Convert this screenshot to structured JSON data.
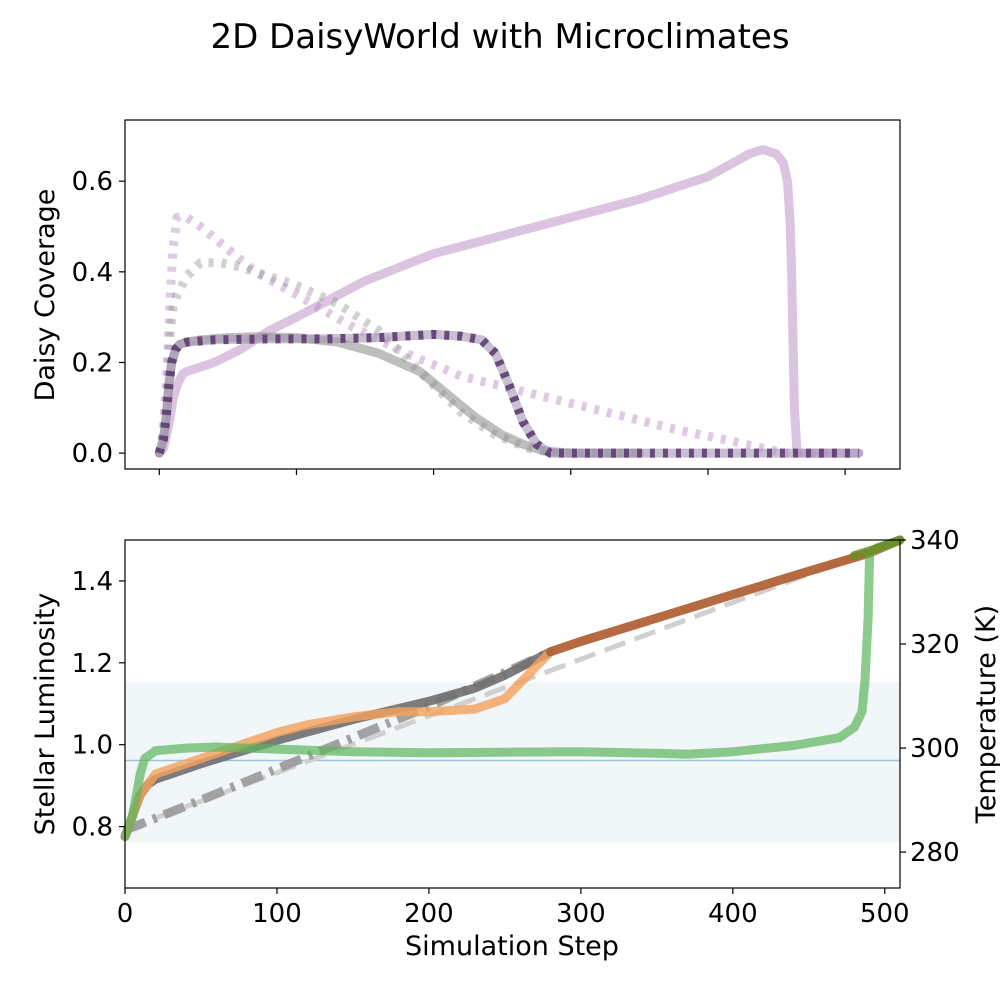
{
  "chart_data": [
    {
      "title": "2D DaisyWorld with Microclimates",
      "type": "line",
      "ylabel": "Daisy Coverage",
      "xlim": [
        -25,
        540
      ],
      "ylim": [
        -0.035,
        0.735
      ],
      "yticks": [
        0.0,
        0.2,
        0.4,
        0.6
      ],
      "ytick_labels": [
        "0.0",
        "0.2",
        "0.4",
        "0.6"
      ],
      "xticks": [
        0,
        100,
        200,
        300,
        400,
        500
      ],
      "series": [
        {
          "color": "#b58ac0",
          "style": "solid",
          "opacity": 0.5,
          "x": [
            0,
            3,
            6,
            8,
            10,
            13,
            17,
            20,
            30,
            40,
            60,
            80,
            100,
            150,
            200,
            250,
            300,
            350,
            400,
            430,
            440,
            450,
            455,
            458,
            460,
            461,
            462,
            463,
            465,
            470,
            490,
            510
          ],
          "y": [
            0.0,
            0.01,
            0.05,
            0.08,
            0.12,
            0.15,
            0.175,
            0.18,
            0.19,
            0.2,
            0.23,
            0.27,
            0.3,
            0.38,
            0.44,
            0.48,
            0.52,
            0.56,
            0.61,
            0.66,
            0.67,
            0.66,
            0.64,
            0.6,
            0.5,
            0.4,
            0.25,
            0.1,
            0.0,
            0.0,
            0.0,
            0.0
          ]
        },
        {
          "color": "#b58ac0",
          "style": "dotted",
          "opacity": 0.45,
          "x": [
            0,
            3,
            6,
            8,
            10,
            13,
            20,
            30,
            50,
            70,
            100,
            140,
            180,
            220,
            260,
            300,
            340,
            380,
            420,
            455,
            470,
            490
          ],
          "y": [
            0.0,
            0.05,
            0.2,
            0.35,
            0.45,
            0.52,
            0.52,
            0.5,
            0.45,
            0.4,
            0.35,
            0.28,
            0.22,
            0.17,
            0.14,
            0.11,
            0.08,
            0.05,
            0.025,
            0.0,
            0.0,
            0.0
          ]
        },
        {
          "color": "#9a9a9a",
          "style": "dotted",
          "opacity": 0.45,
          "x": [
            0,
            3,
            6,
            8,
            10,
            13,
            20,
            30,
            45,
            60,
            80,
            100,
            130,
            160,
            190,
            220,
            245,
            270,
            290,
            300,
            320,
            350
          ],
          "y": [
            0.0,
            0.04,
            0.15,
            0.27,
            0.32,
            0.35,
            0.39,
            0.42,
            0.42,
            0.41,
            0.39,
            0.37,
            0.33,
            0.27,
            0.18,
            0.09,
            0.04,
            0.01,
            0.0,
            0.0,
            0.0,
            0.0
          ]
        },
        {
          "color": "#888888",
          "style": "solid",
          "opacity": 0.55,
          "x": [
            0,
            3,
            5,
            7,
            9,
            12,
            15,
            20,
            30,
            50,
            70,
            100,
            130,
            160,
            190,
            210,
            230,
            250,
            265,
            280,
            300,
            320,
            350
          ],
          "y": [
            0.0,
            0.03,
            0.08,
            0.15,
            0.2,
            0.23,
            0.24,
            0.245,
            0.25,
            0.255,
            0.257,
            0.255,
            0.245,
            0.22,
            0.18,
            0.13,
            0.08,
            0.04,
            0.02,
            0.005,
            0.0,
            0.0,
            0.0
          ]
        },
        {
          "color": "#a495b5",
          "style": "solid",
          "opacity": 0.6,
          "x": [
            0,
            3,
            5,
            7,
            9,
            12,
            15,
            20,
            40,
            80,
            120,
            160,
            200,
            220,
            235,
            245,
            255,
            265,
            275,
            285,
            300,
            350,
            400,
            450,
            490,
            510
          ],
          "y": [
            0.0,
            0.03,
            0.08,
            0.15,
            0.2,
            0.23,
            0.24,
            0.245,
            0.25,
            0.252,
            0.252,
            0.255,
            0.262,
            0.258,
            0.25,
            0.22,
            0.15,
            0.07,
            0.02,
            0.0,
            0.0,
            0.0,
            0.0,
            0.0,
            0.0,
            0.0
          ]
        },
        {
          "color": "#5e3d70",
          "style": "dotted",
          "opacity": 0.9,
          "x": [
            0,
            3,
            5,
            7,
            9,
            12,
            15,
            20,
            40,
            80,
            120,
            160,
            200,
            220,
            235,
            245,
            255,
            265,
            275,
            285,
            300,
            350,
            400,
            450,
            490,
            510
          ],
          "y": [
            0.0,
            0.03,
            0.08,
            0.15,
            0.2,
            0.23,
            0.24,
            0.245,
            0.25,
            0.252,
            0.252,
            0.255,
            0.262,
            0.258,
            0.25,
            0.22,
            0.15,
            0.07,
            0.02,
            0.0,
            0.0,
            0.0,
            0.0,
            0.0,
            0.0,
            0.0
          ]
        }
      ]
    },
    {
      "type": "line",
      "xlabel": "Simulation Step",
      "ylabel": "Stellar Luminosity",
      "ylabel_right": "Temperature (K)",
      "xlim": [
        0,
        510
      ],
      "ylim": [
        0.65,
        1.5
      ],
      "ylim_right": [
        273.1,
        340
      ],
      "xticks": [
        0,
        100,
        200,
        300,
        400,
        500
      ],
      "xtick_labels": [
        "0",
        "100",
        "200",
        "300",
        "400",
        "500"
      ],
      "yticks": [
        0.8,
        1.0,
        1.2,
        1.4
      ],
      "ytick_labels": [
        "0.8",
        "1.0",
        "1.2",
        "1.4"
      ],
      "yticks_right": [
        280,
        300,
        320,
        340
      ],
      "ytick_labels_right": [
        "280",
        "300",
        "320",
        "340"
      ],
      "band_right": [
        281.9,
        312.6
      ],
      "hline_right": 297.6,
      "series": [
        {
          "axis": "left",
          "color": "#d0d0d0",
          "style": "dashed",
          "opacity": 1.0,
          "x": [
            0,
            510
          ],
          "y": [
            0.793,
            1.5
          ]
        },
        {
          "axis": "right",
          "color": "#999999",
          "style": "dashdot",
          "opacity": 0.9,
          "x": [
            0,
            50,
            100,
            150,
            200,
            250,
            280
          ],
          "y": [
            284.2,
            290.0,
            296.0,
            302.0,
            308.0,
            314.5,
            318.5
          ]
        },
        {
          "axis": "right",
          "color": "#6f6f6f",
          "style": "solid",
          "opacity": 0.9,
          "x": [
            0,
            5,
            10,
            15,
            20,
            50,
            100,
            150,
            200,
            230,
            250,
            270,
            280
          ],
          "y": [
            283.0,
            287.0,
            291.0,
            293.0,
            294.0,
            297.0,
            301.5,
            305.5,
            309.0,
            311.5,
            314.0,
            317.0,
            318.5
          ]
        },
        {
          "axis": "right",
          "color": "#f5a15b",
          "style": "solid",
          "opacity": 0.8,
          "x": [
            0,
            5,
            10,
            15,
            20,
            40,
            60,
            80,
            100,
            120,
            150,
            180,
            200,
            230,
            250,
            260,
            270,
            280,
            300,
            350,
            400,
            450,
            490
          ],
          "y": [
            283.0,
            287.0,
            291.0,
            293.0,
            295.0,
            297.0,
            299.0,
            301.0,
            303.0,
            304.5,
            306.0,
            307.0,
            307.0,
            307.5,
            309.5,
            312.5,
            315.5,
            318.5,
            320.5,
            325.0,
            329.5,
            334.0,
            337.5
          ]
        },
        {
          "axis": "right",
          "color": "#a0522d",
          "style": "solid",
          "opacity": 0.75,
          "x": [
            280,
            300,
            350,
            400,
            450,
            490,
            510
          ],
          "y": [
            318.5,
            320.5,
            325.0,
            329.5,
            334.0,
            337.5,
            340.0
          ]
        },
        {
          "axis": "right",
          "color": "#5bb55b",
          "style": "solid",
          "opacity": 0.7,
          "x": [
            0,
            5,
            10,
            13,
            20,
            40,
            60,
            80,
            100,
            150,
            200,
            250,
            300,
            350,
            370,
            400,
            440,
            470,
            480,
            485,
            487,
            489,
            490,
            495,
            510
          ],
          "y": [
            283.0,
            287.0,
            295.0,
            298.0,
            299.5,
            300.0,
            300.2,
            300.0,
            299.8,
            299.3,
            299.1,
            299.2,
            299.3,
            299.0,
            298.8,
            299.3,
            300.5,
            302.0,
            304.0,
            307.0,
            313.0,
            325.0,
            337.5,
            338.5,
            340.0
          ]
        },
        {
          "axis": "right",
          "color": "#6b8e23",
          "style": "solid",
          "opacity": 0.85,
          "x": [
            480,
            490,
            500,
            510
          ],
          "y": [
            337.0,
            337.9,
            338.9,
            340.0
          ]
        }
      ]
    }
  ]
}
